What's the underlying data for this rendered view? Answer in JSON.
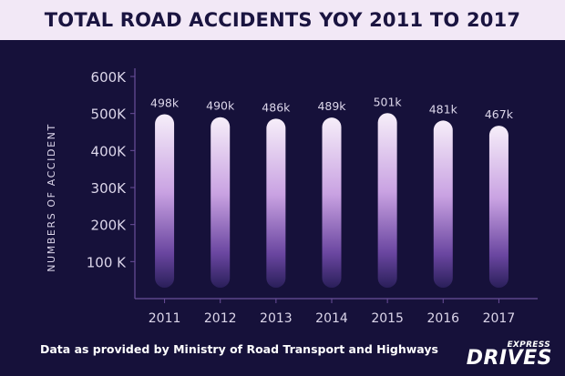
{
  "header": {
    "title": "TOTAL ROAD ACCIDENTS YOY 2011 TO 2017"
  },
  "colors": {
    "background": "#16113a",
    "header_band": "#f2e8f6",
    "bar_top": "#f6eef9",
    "bar_mid": "#c9a2e2",
    "bar_bottom": "#2a1f5a",
    "text_light": "#dcd6ea",
    "axis": "#6a4f9a"
  },
  "chart_data": {
    "type": "bar",
    "title": "TOTAL ROAD ACCIDENTS YOY 2011 TO 2017",
    "xlabel": "",
    "ylabel": "NUMBERS OF ACCIDENT",
    "categories": [
      "2011",
      "2012",
      "2013",
      "2014",
      "2015",
      "2016",
      "2017"
    ],
    "values": [
      498000,
      490000,
      486000,
      489000,
      501000,
      481000,
      467000
    ],
    "data_labels": [
      "498k",
      "490k",
      "486k",
      "489k",
      "501k",
      "481k",
      "467k"
    ],
    "y_ticks": [
      100000,
      200000,
      300000,
      400000,
      500000,
      600000
    ],
    "y_tick_labels": [
      "100 K",
      "200K",
      "300K",
      "400K",
      "500K",
      "600K"
    ],
    "ylim": [
      0,
      600000
    ],
    "grid": false,
    "legend": "none"
  },
  "footer": {
    "source_note": "Data as provided by Ministry of Road Transport and Highways",
    "brand_top": "EXPRESS",
    "brand_main": "DRIVES"
  }
}
